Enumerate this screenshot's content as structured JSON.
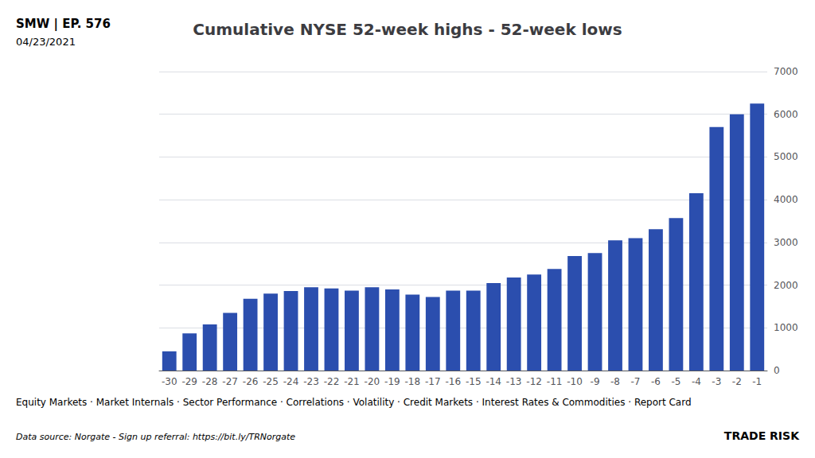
{
  "chart_data": {
    "type": "bar",
    "title": "Cumulative NYSE 52-week highs - 52-week lows",
    "categories": [
      "-30",
      "-29",
      "-28",
      "-27",
      "-26",
      "-25",
      "-24",
      "-23",
      "-22",
      "-21",
      "-20",
      "-19",
      "-18",
      "-17",
      "-16",
      "-15",
      "-14",
      "-13",
      "-12",
      "-11",
      "-10",
      "-9",
      "-8",
      "-7",
      "-6",
      "-5",
      "-4",
      "-3",
      "-2",
      "-1"
    ],
    "values": [
      450,
      870,
      1080,
      1350,
      1680,
      1800,
      1860,
      1950,
      1920,
      1870,
      1950,
      1900,
      1780,
      1720,
      1870,
      1870,
      2050,
      2180,
      2250,
      2380,
      2680,
      2750,
      3050,
      3100,
      3310,
      3570,
      4150,
      5700,
      6000,
      6250
    ],
    "color": "#2B4EAE",
    "ylim": [
      0,
      7000
    ],
    "yticks": [
      0,
      1000,
      2000,
      3000,
      4000,
      5000,
      6000,
      7000
    ],
    "grid": true,
    "annotations": [
      "SMW | EP. 576",
      "04/23/2021",
      "Equity Markets · Market Internals · Sector Performance · Correlations · Volatility · Credit Markets · Interest Rates & Commodities · Report Card",
      "Data source: Norgate - Sign up referral: https://bit.ly/TRNorgate",
      "TRADE RISK"
    ]
  }
}
